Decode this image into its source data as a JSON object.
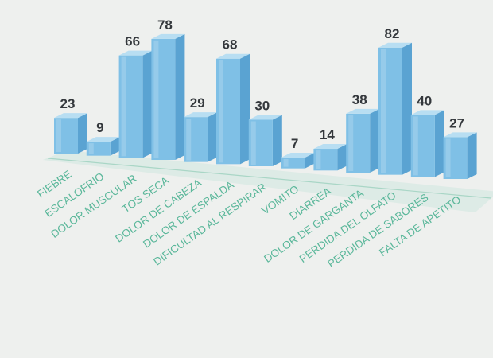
{
  "chart_data": {
    "type": "bar",
    "categories": [
      "FIEBRE",
      "ESCALOFRIO",
      "DOLOR MUSCULAR",
      "TOS SECA",
      "DOLOR DE CABEZA",
      "DOLOR DE ESPALDA",
      "DIFICULTAD AL RESPIRAR",
      "VOMITO",
      "DIARREA",
      "DOLOR DE GARGANTA",
      "PERDIDA DEL OLFATO",
      "PERDIDA DE SABORES",
      "FALTA DE APETITO"
    ],
    "values": [
      23,
      9,
      66,
      78,
      29,
      68,
      30,
      7,
      14,
      38,
      82,
      40,
      27
    ],
    "title": "",
    "xlabel": "",
    "ylabel": "",
    "ylim": [
      0,
      90
    ],
    "grid": false,
    "legend": "none",
    "bar_style": "3d",
    "colors": {
      "bar_front": "#7fc0e6",
      "bar_side": "#5aa3d2",
      "bar_top": "#b8def2",
      "floor": "#cfe8e0",
      "value_label": "#34383c",
      "category_label": "#5ab79a"
    }
  }
}
